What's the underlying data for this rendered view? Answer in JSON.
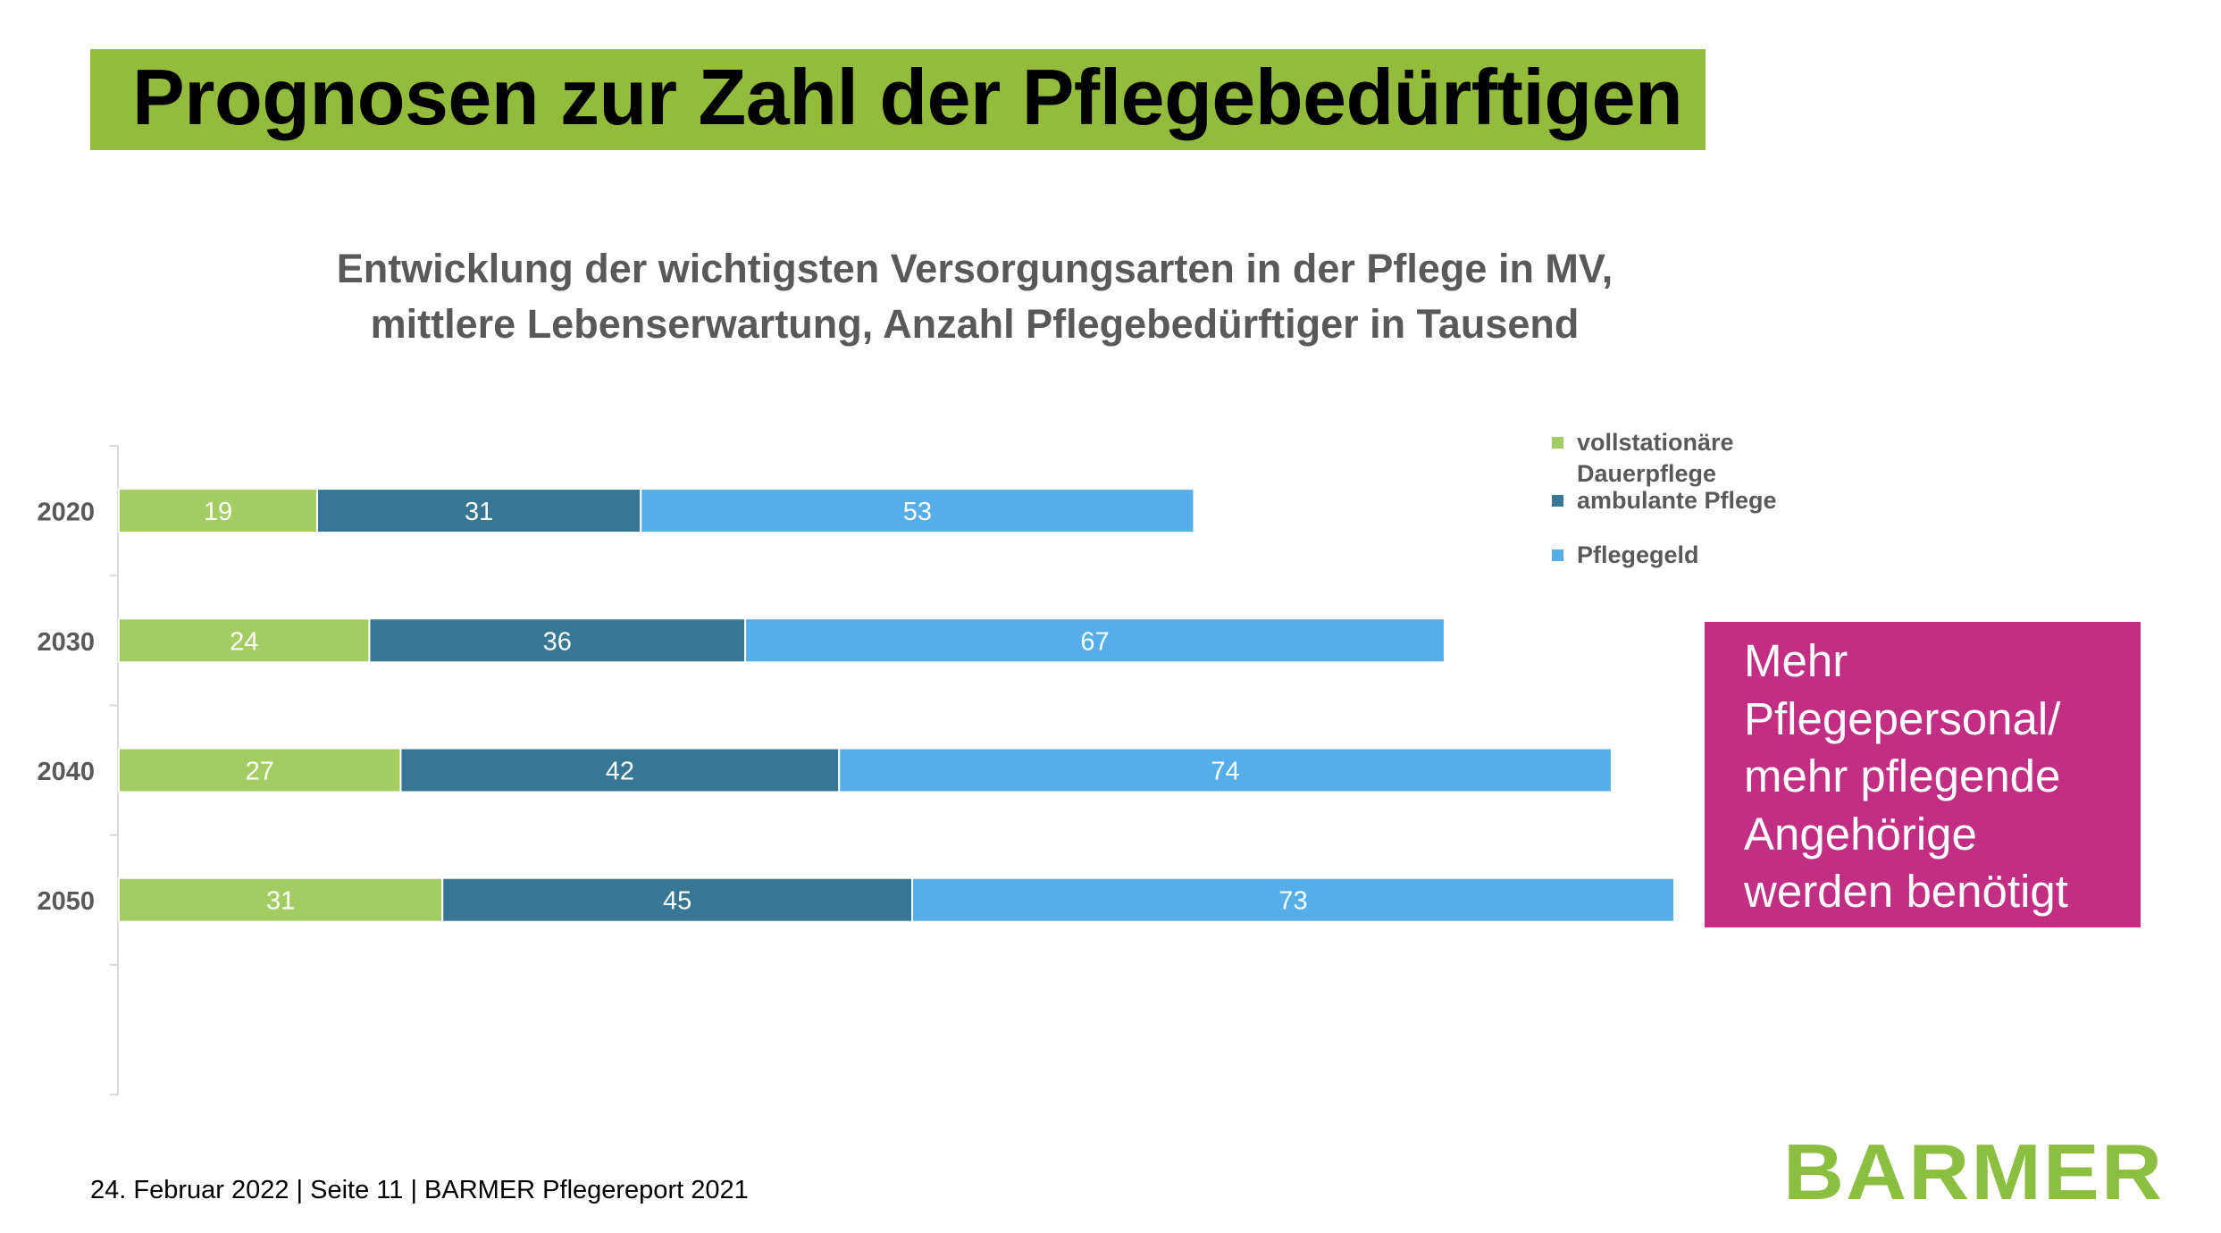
{
  "slide": {
    "title": "Prognosen zur Zahl der Pflegebedürftigen",
    "footer": "24. Februar 2022 | Seite 11 | BARMER Pflegereport 2021",
    "logo_text": "BARMER",
    "callout_lines": [
      "Mehr",
      "Pflegepersonal/",
      "mehr pflegende",
      "Angehörige",
      "werden benötigt"
    ]
  },
  "colors": {
    "banner": "#93BB3C",
    "callout": "#C22E84",
    "logo": "#8CBF3F",
    "text_gray": "#595959"
  },
  "chart_data": {
    "type": "bar",
    "orientation": "horizontal",
    "stacked": true,
    "title_lines": [
      "Entwicklung der wichtigsten Versorgungsarten in der Pflege in MV,",
      "mittlere Lebenserwartung, Anzahl Pflegebedürftiger in Tausend"
    ],
    "categories": [
      "2020",
      "2030",
      "2040",
      "2050"
    ],
    "series": [
      {
        "name": "vollstationäre Dauerpflege",
        "legend_lines": [
          "vollstationäre",
          "Dauerpflege"
        ],
        "color": "#A3CC63",
        "values": [
          19,
          24,
          27,
          31
        ]
      },
      {
        "name": "ambulante Pflege",
        "legend_lines": [
          "ambulante Pflege"
        ],
        "color": "#377793",
        "values": [
          31,
          36,
          42,
          45
        ]
      },
      {
        "name": "Pflegegeld",
        "legend_lines": [
          "Pflegegeld"
        ],
        "color": "#56AEE8",
        "values": [
          53,
          67,
          74,
          73
        ]
      }
    ],
    "xlim": [
      0,
      149
    ],
    "xlabel": "",
    "ylabel": "",
    "grid": false,
    "data_labels": true,
    "legend_position": "top-right"
  }
}
